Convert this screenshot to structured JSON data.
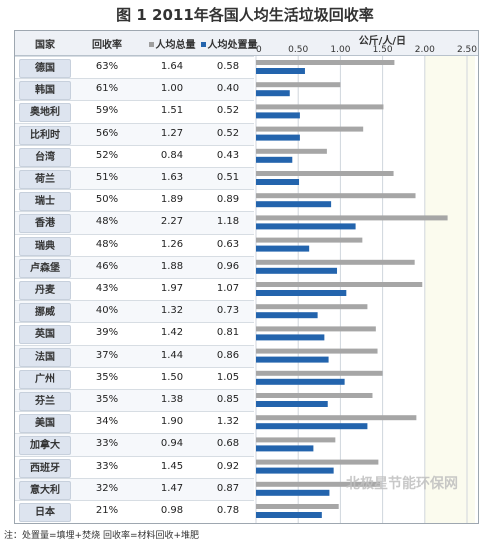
{
  "title": "图 1   2011年各国人均生活垃圾回收率",
  "headers": {
    "country": "国家",
    "rate": "回收率",
    "total": "人均总量",
    "disposal": "人均处置量",
    "unit": "公斤/人/日"
  },
  "note": "注：处置量=填埋+焚烧      回收率=材料回收+堆肥",
  "watermark": "北极星节能环保网",
  "colors": {
    "total_bar": "#a6a6a6",
    "disposal_bar": "#2364ad",
    "total_square": "#9e9e9e",
    "disposal_square": "#2364ad"
  },
  "rows": [
    {
      "country": "德国",
      "rate": "63%",
      "total": "1.64",
      "disposal": "0.58"
    },
    {
      "country": "韩国",
      "rate": "61%",
      "total": "1.00",
      "disposal": "0.40"
    },
    {
      "country": "奥地利",
      "rate": "59%",
      "total": "1.51",
      "disposal": "0.52"
    },
    {
      "country": "比利时",
      "rate": "56%",
      "total": "1.27",
      "disposal": "0.52"
    },
    {
      "country": "台湾",
      "rate": "52%",
      "total": "0.84",
      "disposal": "0.43"
    },
    {
      "country": "荷兰",
      "rate": "51%",
      "total": "1.63",
      "disposal": "0.51"
    },
    {
      "country": "瑞士",
      "rate": "50%",
      "total": "1.89",
      "disposal": "0.89"
    },
    {
      "country": "香港",
      "rate": "48%",
      "total": "2.27",
      "disposal": "1.18"
    },
    {
      "country": "瑞典",
      "rate": "48%",
      "total": "1.26",
      "disposal": "0.63"
    },
    {
      "country": "卢森堡",
      "rate": "46%",
      "total": "1.88",
      "disposal": "0.96"
    },
    {
      "country": "丹麦",
      "rate": "43%",
      "total": "1.97",
      "disposal": "1.07"
    },
    {
      "country": "挪威",
      "rate": "40%",
      "total": "1.32",
      "disposal": "0.73"
    },
    {
      "country": "英国",
      "rate": "39%",
      "total": "1.42",
      "disposal": "0.81"
    },
    {
      "country": "法国",
      "rate": "37%",
      "total": "1.44",
      "disposal": "0.86"
    },
    {
      "country": "广州",
      "rate": "35%",
      "total": "1.50",
      "disposal": "1.05"
    },
    {
      "country": "芬兰",
      "rate": "35%",
      "total": "1.38",
      "disposal": "0.85"
    },
    {
      "country": "美国",
      "rate": "34%",
      "total": "1.90",
      "disposal": "1.32"
    },
    {
      "country": "加拿大",
      "rate": "33%",
      "total": "0.94",
      "disposal": "0.68"
    },
    {
      "country": "西班牙",
      "rate": "33%",
      "total": "1.45",
      "disposal": "0.92"
    },
    {
      "country": "意大利",
      "rate": "32%",
      "total": "1.47",
      "disposal": "0.87"
    },
    {
      "country": "日本",
      "rate": "21%",
      "total": "0.98",
      "disposal": "0.78"
    }
  ],
  "chart_data": {
    "type": "bar",
    "orientation": "horizontal",
    "title": "图 1   2011年各国人均生活垃圾回收率",
    "xlabel": "公斤/人/日",
    "categories": [
      "德国",
      "韩国",
      "奥地利",
      "比利时",
      "台湾",
      "荷兰",
      "瑞士",
      "香港",
      "瑞典",
      "卢森堡",
      "丹麦",
      "挪威",
      "英国",
      "法国",
      "广州",
      "芬兰",
      "美国",
      "加拿大",
      "西班牙",
      "意大利",
      "日本"
    ],
    "series": [
      {
        "name": "人均总量",
        "values": [
          1.64,
          1.0,
          1.51,
          1.27,
          0.84,
          1.63,
          1.89,
          2.27,
          1.26,
          1.88,
          1.97,
          1.32,
          1.42,
          1.44,
          1.5,
          1.38,
          1.9,
          0.94,
          1.45,
          1.47,
          0.98
        ]
      },
      {
        "name": "人均处置量",
        "values": [
          0.58,
          0.4,
          0.52,
          0.52,
          0.43,
          0.51,
          0.89,
          1.18,
          0.63,
          0.96,
          1.07,
          0.73,
          0.81,
          0.86,
          1.05,
          0.85,
          1.32,
          0.68,
          0.92,
          0.87,
          0.78
        ]
      }
    ],
    "xlim": [
      0,
      2.5
    ],
    "ticks": [
      "0",
      "0.50",
      "1.00",
      "1.50",
      "2.00",
      "2.50"
    ],
    "grid": true
  }
}
